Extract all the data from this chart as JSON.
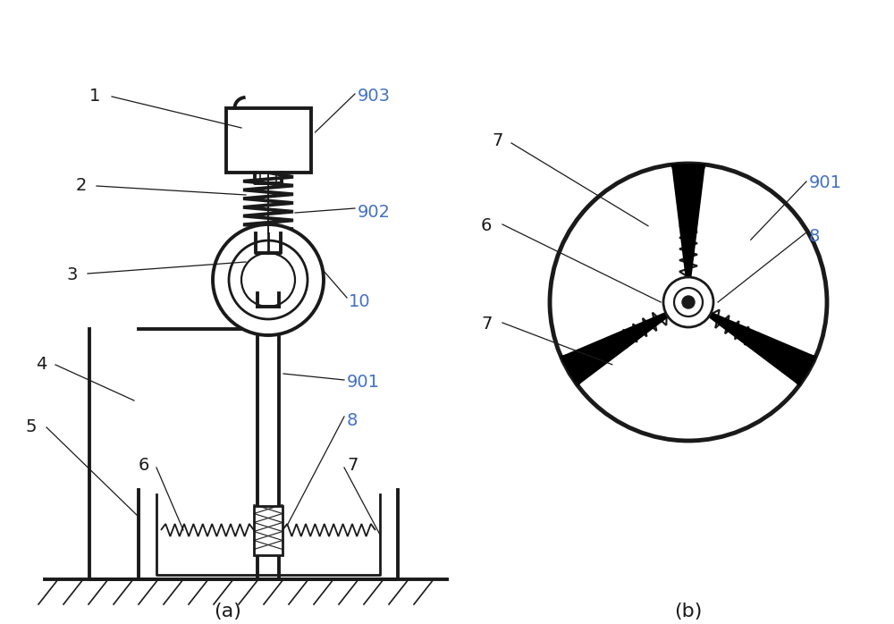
{
  "bg_color": "#ffffff",
  "line_color": "#1a1a1a",
  "label_color_black": "#1a1a1a",
  "label_color_blue": "#4472c4",
  "fig_width": 10.0,
  "fig_height": 6.98,
  "title_a": "(a)",
  "title_b": "(b)"
}
